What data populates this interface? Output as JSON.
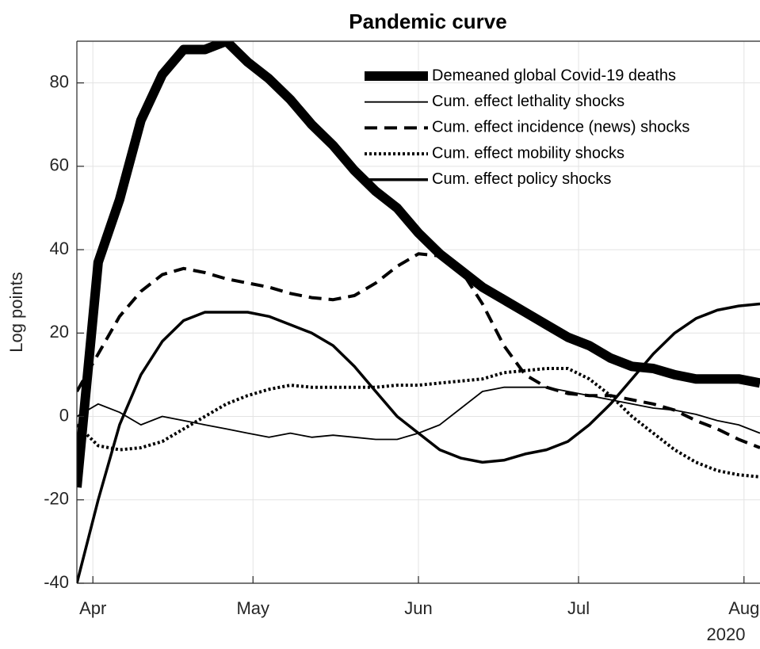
{
  "chart_data": {
    "type": "line",
    "title": "Pandemic curve",
    "y_label": "Log points",
    "x_offset_label": "2020",
    "x": [
      89,
      93,
      97,
      101,
      105,
      109,
      113,
      117,
      121,
      125,
      129,
      133,
      137,
      141,
      145,
      149,
      153,
      157,
      161,
      165,
      169,
      173,
      177,
      181,
      185,
      189,
      193,
      197,
      201,
      205,
      209,
      213,
      217
    ],
    "series": [
      {
        "name": "Demeaned global Covid-19 deaths",
        "color": "#000000",
        "line_width": 12,
        "dash": "solid",
        "values": [
          -17,
          37,
          52,
          71,
          82,
          88,
          88,
          90,
          85,
          81,
          76,
          70,
          65,
          59,
          54,
          50,
          44,
          39,
          35,
          31,
          28,
          25,
          22,
          19,
          17,
          14,
          12,
          11.5,
          10,
          9,
          9,
          9,
          8
        ]
      },
      {
        "name": "Cum. effect lethality shocks",
        "color": "#000000",
        "line_width": 1.8,
        "dash": "solid",
        "values": [
          0,
          3,
          1,
          -2,
          0,
          -1,
          -2,
          -3,
          -4,
          -5,
          -4,
          -5,
          -4.5,
          -5,
          -5.5,
          -5.5,
          -4,
          -2,
          2,
          6,
          7,
          7,
          7,
          6,
          5,
          4,
          3,
          2,
          1.5,
          0.5,
          -1,
          -2,
          -4
        ]
      },
      {
        "name": "Cum. effect incidence (news) shocks",
        "color": "#000000",
        "line_width": 4,
        "dash": "dashed",
        "values": [
          6,
          15,
          24,
          30,
          34,
          35.5,
          34.5,
          33,
          32,
          31,
          29.5,
          28.5,
          28,
          29,
          32,
          36,
          39,
          38.5,
          35,
          27,
          17,
          10,
          7,
          5.5,
          5,
          5,
          4,
          3,
          1.5,
          -1,
          -3,
          -5.5,
          -7.5
        ]
      },
      {
        "name": "Cum. effect mobility shocks",
        "color": "#000000",
        "line_width": 4,
        "dash": "dotted",
        "values": [
          -2,
          -7,
          -8,
          -7.5,
          -6,
          -3,
          0,
          3,
          5,
          6.5,
          7.5,
          7,
          7,
          7,
          7,
          7.5,
          7.5,
          8,
          8.5,
          9,
          10.5,
          11,
          11.5,
          11.5,
          9,
          5,
          0,
          -4,
          -8,
          -11,
          -13,
          -14,
          -14.5
        ]
      },
      {
        "name": "Cum. effect policy shocks",
        "color": "#000000",
        "line_width": 3.5,
        "dash": "solid",
        "values": [
          -40,
          -20,
          -2,
          10,
          18,
          23,
          25,
          25,
          25,
          24,
          22,
          20,
          17,
          12,
          6,
          0,
          -4,
          -8,
          -10,
          -11,
          -10.5,
          -9,
          -8,
          -6,
          -2,
          3,
          9,
          15,
          20,
          23.5,
          25.5,
          26.5,
          27
        ]
      }
    ],
    "xlim": [
      89,
      217
    ],
    "xticks": [
      {
        "value": 92,
        "label": "Apr"
      },
      {
        "value": 122,
        "label": "May"
      },
      {
        "value": 153,
        "label": "Jun"
      },
      {
        "value": 183,
        "label": "Jul"
      },
      {
        "value": 214,
        "label": "Aug"
      }
    ],
    "ylim": [
      -40,
      90
    ],
    "yticks": [
      -40,
      -20,
      0,
      20,
      40,
      60,
      80
    ],
    "grid": true,
    "legend": "upper right"
  }
}
